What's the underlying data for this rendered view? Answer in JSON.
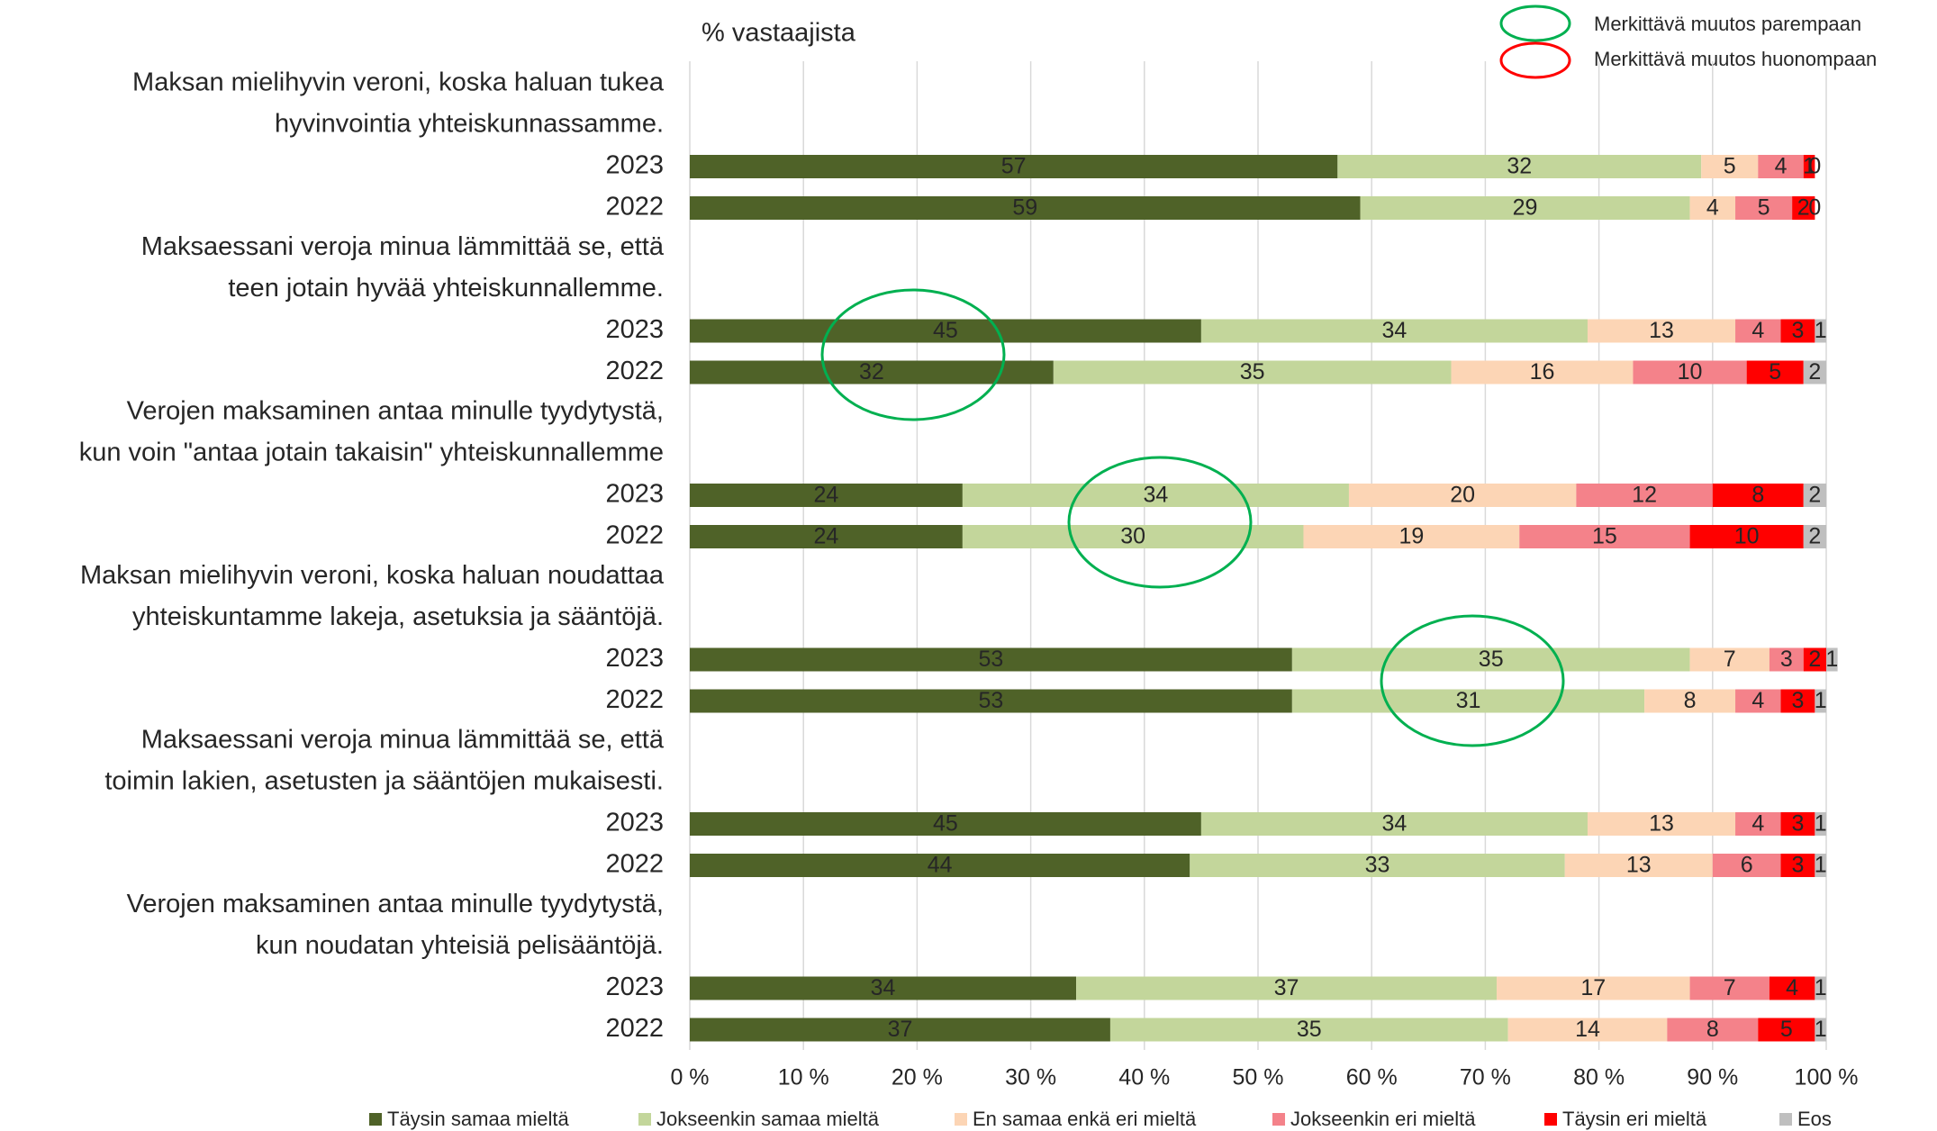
{
  "chart_data": {
    "type": "bar",
    "orientation": "horizontal",
    "stacked": true,
    "title": "% vastaajista",
    "groups": [
      [
        "Maksan mielihyvin veroni, koska haluan tukea",
        "hyvinvointia yhteiskunnassamme."
      ],
      [
        "Maksaessani veroja minua lämmittää se, että",
        "teen jotain hyvää yhteiskunnallemme."
      ],
      [
        "Verojen maksaminen antaa minulle tyydytystä,",
        "kun voin \"antaa jotain takaisin\" yhteiskunnallemme"
      ],
      [
        "Maksan mielihyvin veroni, koska haluan noudattaa",
        "yhteiskuntamme lakeja, asetuksia ja sääntöjä."
      ],
      [
        "Maksaessani veroja minua lämmittää se, että",
        "toimin lakien, asetusten ja sääntöjen mukaisesti."
      ],
      [
        "Verojen maksaminen antaa minulle tyydytystä,",
        "kun noudatan yhteisiä pelisääntöjä."
      ]
    ],
    "categories": [
      "2023",
      "2022",
      "2023",
      "2022",
      "2023",
      "2022",
      "2023",
      "2022",
      "2023",
      "2022",
      "2023",
      "2022"
    ],
    "series": [
      {
        "name": "Täysin samaa mieltä",
        "color": "#4f6228",
        "label_color": "#ffffff",
        "values": [
          57,
          59,
          45,
          32,
          24,
          24,
          53,
          53,
          45,
          44,
          34,
          37
        ]
      },
      {
        "name": "Jokseenkin samaa mieltä",
        "color": "#c3d69b",
        "label_color": "#000000",
        "values": [
          32,
          29,
          34,
          35,
          34,
          30,
          35,
          31,
          34,
          33,
          37,
          35
        ]
      },
      {
        "name": "En samaa enkä eri mieltä",
        "color": "#fcd5b5",
        "label_color": "#000000",
        "values": [
          5,
          4,
          13,
          16,
          20,
          19,
          7,
          8,
          13,
          13,
          17,
          14
        ]
      },
      {
        "name": "Jokseenkin eri mieltä",
        "color": "#f4828a",
        "label_color": "#000000",
        "values": [
          4,
          5,
          4,
          10,
          12,
          15,
          3,
          4,
          4,
          6,
          7,
          8
        ]
      },
      {
        "name": "Täysin eri mieltä",
        "color": "#ff0000",
        "label_color": "#ffffff",
        "values": [
          1,
          2,
          3,
          5,
          8,
          10,
          2,
          3,
          3,
          3,
          4,
          5
        ]
      },
      {
        "name": "Eos",
        "color": "#bfbfbf",
        "label_color": "#000000",
        "values": [
          0,
          0,
          1,
          2,
          2,
          2,
          1,
          1,
          1,
          1,
          1,
          1
        ]
      }
    ],
    "xlim": [
      0,
      100
    ],
    "xticks": [
      {
        "value": 0,
        "label": "0 %"
      },
      {
        "value": 10,
        "label": "10 %"
      },
      {
        "value": 20,
        "label": "20 %"
      },
      {
        "value": 30,
        "label": "30 %"
      },
      {
        "value": 40,
        "label": "40 %"
      },
      {
        "value": 50,
        "label": "50 %"
      },
      {
        "value": 60,
        "label": "60 %"
      },
      {
        "value": 70,
        "label": "70 %"
      },
      {
        "value": 80,
        "label": "80 %"
      },
      {
        "value": 90,
        "label": "90 %"
      },
      {
        "value": 100,
        "label": "100 %"
      }
    ],
    "grid": true,
    "legend": "bottom",
    "annotations": [
      "Merkittävä muutos parempaan",
      "Merkittävä muutos huonompaan"
    ]
  }
}
